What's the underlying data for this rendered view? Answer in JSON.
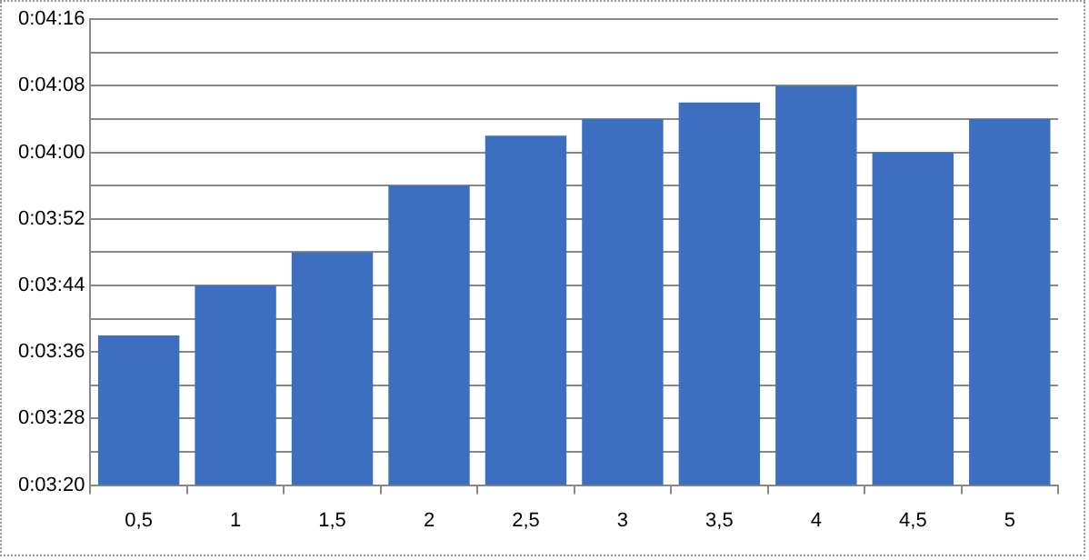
{
  "chart_data": {
    "type": "bar",
    "categories": [
      "0,5",
      "1",
      "1,5",
      "2",
      "2,5",
      "3",
      "3,5",
      "4",
      "4,5",
      "5"
    ],
    "values": [
      218,
      224,
      228,
      236,
      242,
      244,
      246,
      248,
      240,
      244
    ],
    "color": "#3d6fc0",
    "ylim": [
      200,
      256
    ],
    "yticks": [
      {
        "value": 200,
        "label": "0:03:20"
      },
      {
        "value": 204,
        "label": null
      },
      {
        "value": 208,
        "label": "0:03:28"
      },
      {
        "value": 212,
        "label": null
      },
      {
        "value": 216,
        "label": "0:03:36"
      },
      {
        "value": 220,
        "label": null
      },
      {
        "value": 224,
        "label": "0:03:44"
      },
      {
        "value": 228,
        "label": null
      },
      {
        "value": 232,
        "label": "0:03:52"
      },
      {
        "value": 236,
        "label": null
      },
      {
        "value": 240,
        "label": "0:04:00"
      },
      {
        "value": 244,
        "label": null
      },
      {
        "value": 248,
        "label": "0:04:08"
      },
      {
        "value": 252,
        "label": null
      },
      {
        "value": 256,
        "label": "0:04:16"
      }
    ],
    "grid": "y",
    "legend": false
  }
}
